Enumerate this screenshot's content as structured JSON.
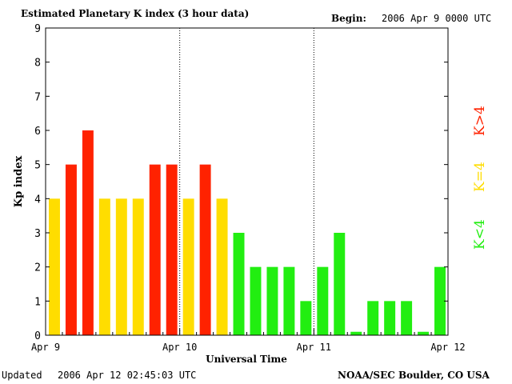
{
  "header": {
    "title": "Estimated Planetary K index (3 hour data)",
    "begin_label": "Begin:",
    "begin_value": "2006 Apr 9 0000 UTC"
  },
  "footer": {
    "updated_label": "Updated",
    "updated_value": "2006 Apr 12 02:45:03 UTC",
    "credit": "NOAA/SEC Boulder, CO USA"
  },
  "legend": {
    "high": "K>4",
    "equal": "K=4",
    "low": "K<4"
  },
  "colors": {
    "low": "#22ee11",
    "equal": "#ffdd00",
    "high": "#ff2200",
    "axis": "#000000"
  },
  "chart_data": {
    "type": "bar",
    "title": "Estimated Planetary K index (3 hour data)",
    "xlabel": "Universal Time",
    "ylabel": "Kp index",
    "ylim": [
      0,
      9
    ],
    "yticks": [
      "0",
      "1",
      "2",
      "3",
      "4",
      "5",
      "6",
      "7",
      "8",
      "9"
    ],
    "day_labels": [
      "Apr 9",
      "Apr 10",
      "Apr 11",
      "Apr 12"
    ],
    "interval": "3 hour",
    "values": [
      4,
      5,
      6,
      4,
      4,
      4,
      5,
      5,
      4,
      5,
      4,
      3,
      2,
      2,
      2,
      1,
      2,
      3,
      0.1,
      1,
      1,
      1,
      0.1,
      2
    ],
    "color_rule": "green K<4, yellow K=4, red K>4"
  }
}
